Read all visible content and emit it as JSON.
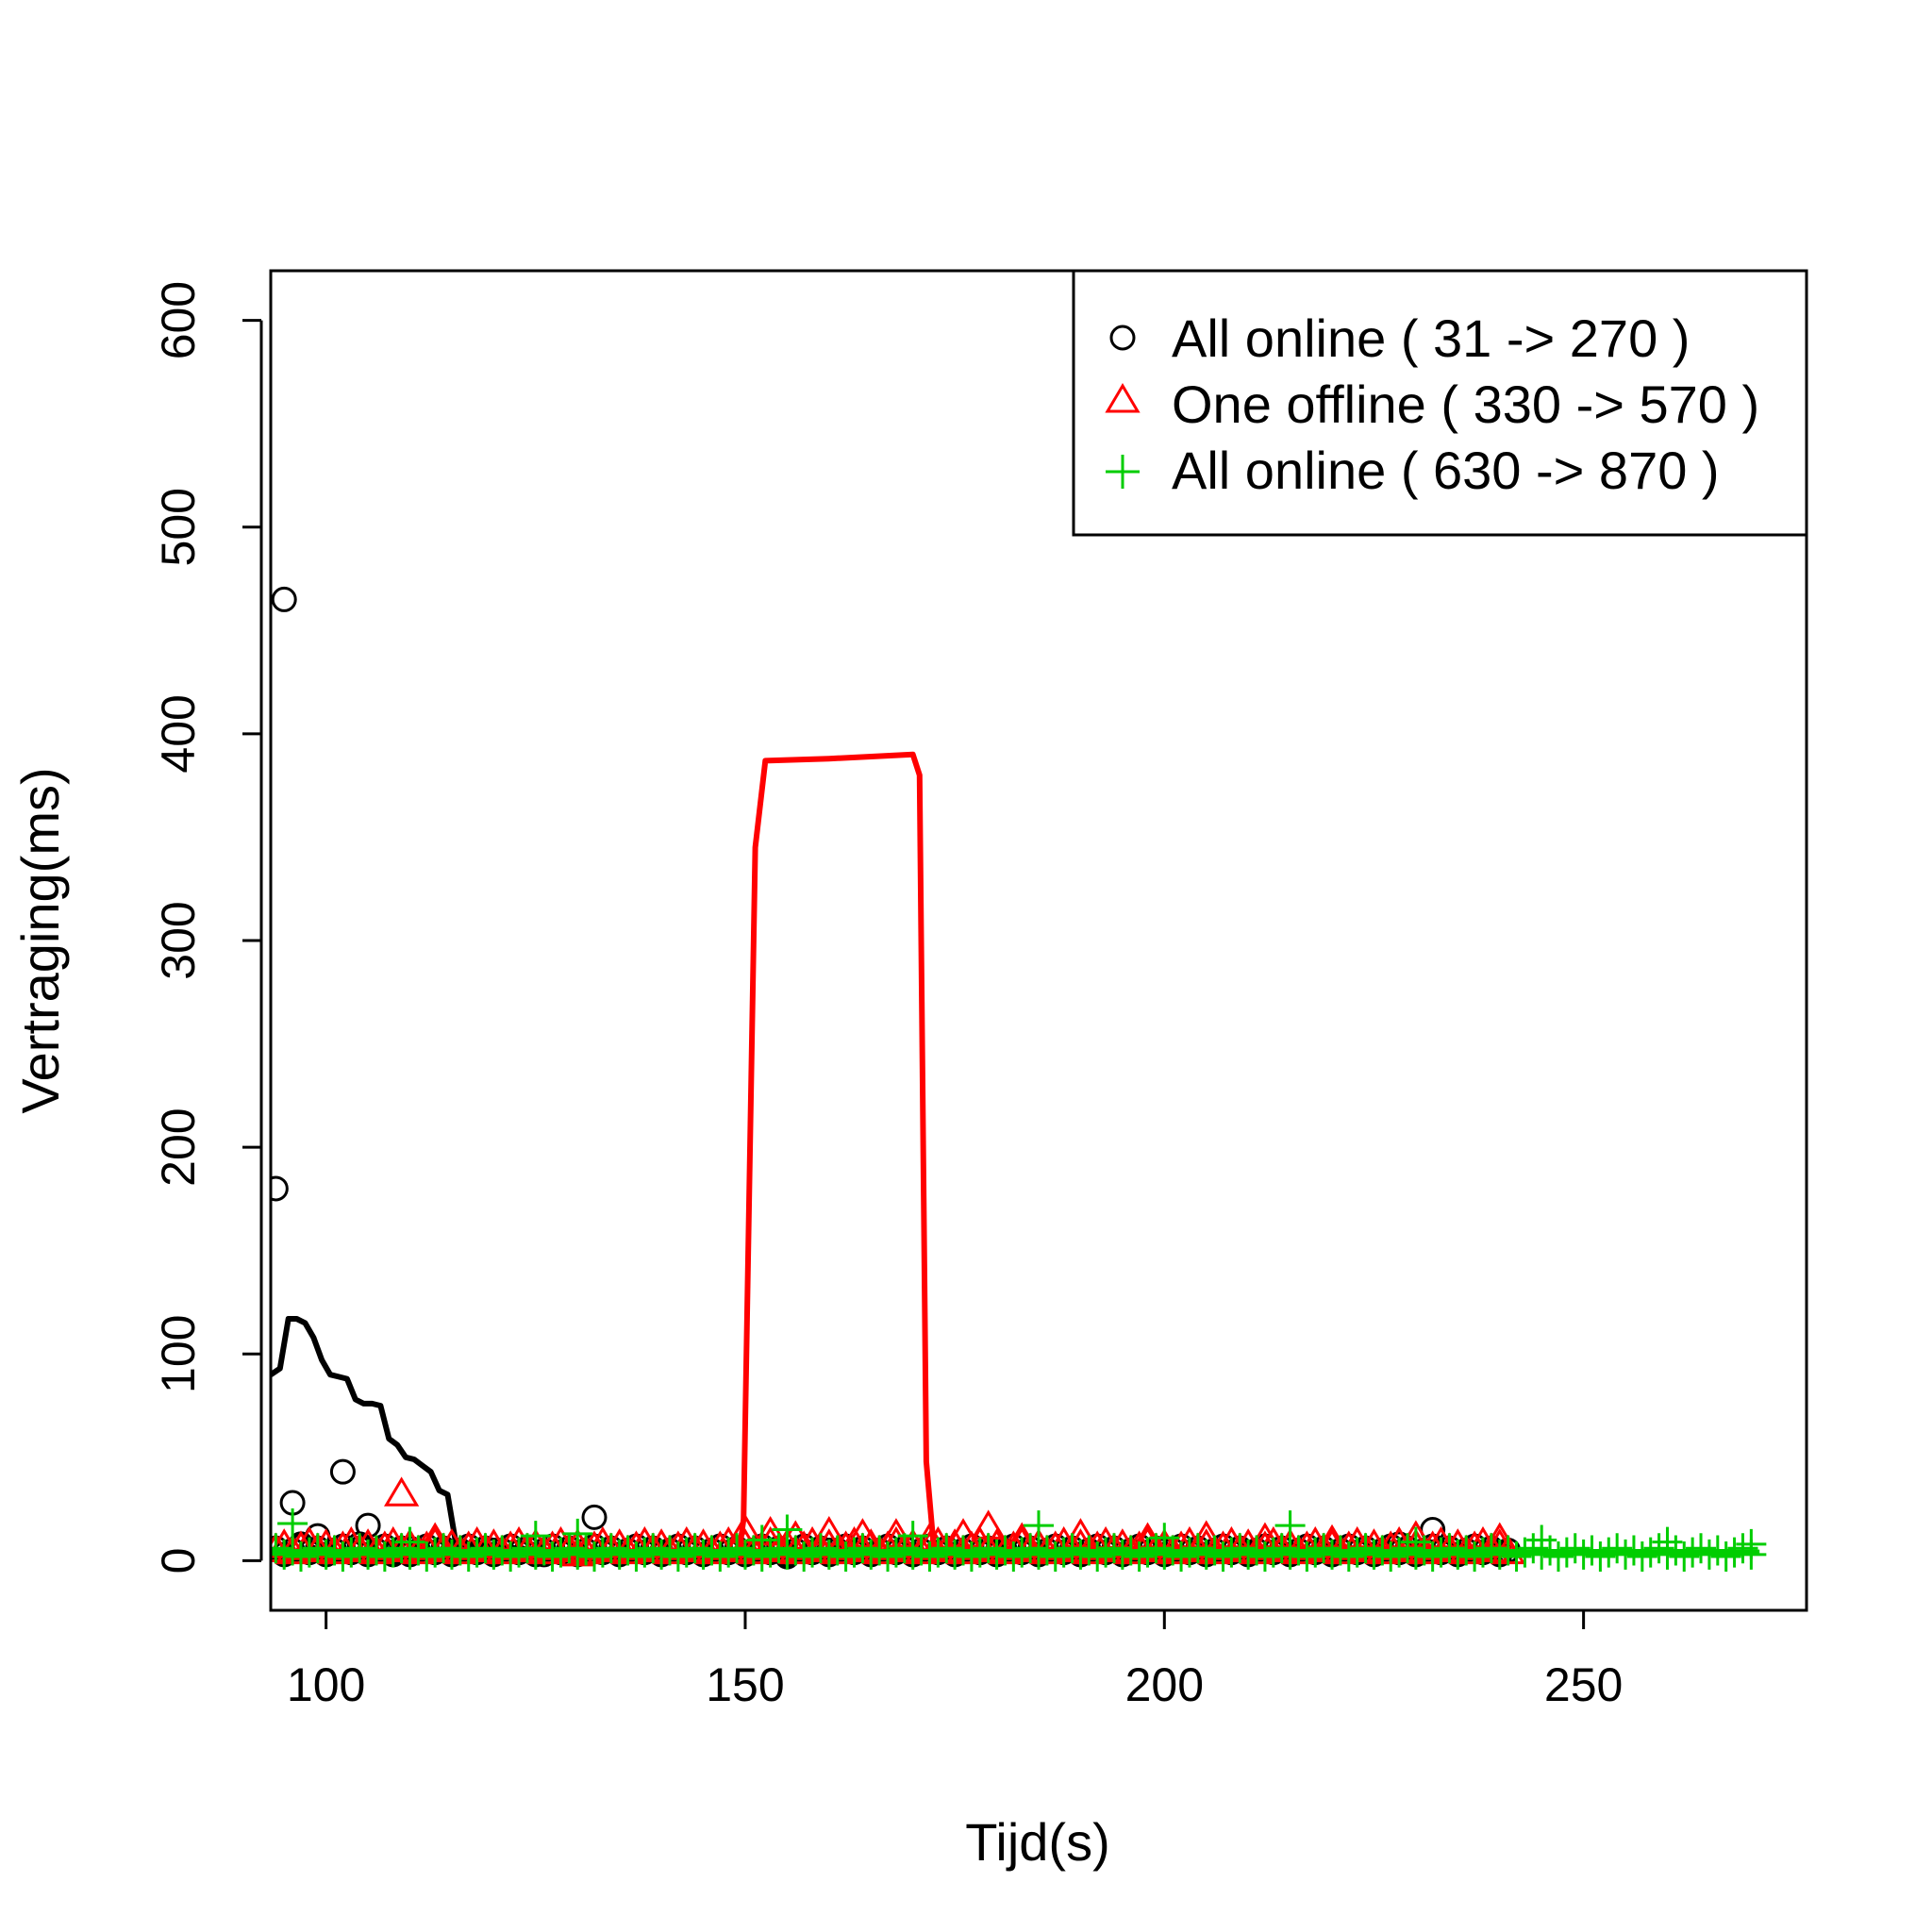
{
  "chart_data": {
    "type": "scatter",
    "title": "",
    "xlabel": "Tijd(s)",
    "ylabel": "Vertraging(ms)",
    "xlim": [
      93.4,
      276.6
    ],
    "ylim": [
      -24,
      624
    ],
    "x_ticks": [
      "100",
      "150",
      "200",
      "250"
    ],
    "y_ticks": [
      "0",
      "100",
      "200",
      "300",
      "400",
      "500",
      "600"
    ],
    "grid": false,
    "legend": {
      "position": "top-right",
      "entries": [
        {
          "label": "All online ( 31 -> 270 )",
          "marker": "circle",
          "color": "#000000"
        },
        {
          "label": "One offline ( 330 -> 570 )",
          "marker": "triangle",
          "color": "#ff0000"
        },
        {
          "label": "All online ( 630 -> 870 )",
          "marker": "plus",
          "color": "#00cd00"
        }
      ]
    },
    "series": [
      {
        "name": "All online ( 31 -> 270 )",
        "color": "#000000",
        "marker": "circle",
        "points": [
          [
            94,
            180
          ],
          [
            95,
            465
          ],
          [
            96,
            28
          ],
          [
            97,
            8
          ],
          [
            99,
            12
          ],
          [
            101,
            5
          ],
          [
            102,
            43
          ],
          [
            104,
            8
          ],
          [
            105,
            17
          ],
          [
            108,
            3
          ],
          [
            110,
            6
          ],
          [
            115,
            4
          ],
          [
            120,
            5
          ],
          [
            126,
            3
          ],
          [
            132,
            21
          ],
          [
            140,
            4
          ],
          [
            150,
            3
          ],
          [
            155,
            2
          ],
          [
            160,
            5
          ],
          [
            170,
            3
          ],
          [
            180,
            4
          ],
          [
            190,
            3
          ],
          [
            200,
            5
          ],
          [
            210,
            4
          ],
          [
            220,
            3
          ],
          [
            228,
            8
          ],
          [
            232,
            15
          ],
          [
            240,
            4
          ]
        ],
        "baseline": {
          "x_from": 94,
          "x_to": 241,
          "y": 5,
          "spacing": 1
        },
        "line": {
          "x": [
            93.4,
            94.5,
            95.5,
            96.5,
            97.5,
            98.5,
            99.5,
            100.5,
            101.5,
            102.5,
            103.5,
            104.5,
            105.5,
            106.5,
            107.5,
            108.5,
            109.5,
            110.5,
            111.5,
            112.5,
            113.5,
            114.5,
            115.5,
            130,
            150,
            170,
            190,
            210,
            230,
            241
          ],
          "y": [
            90,
            93,
            117,
            117,
            115,
            108,
            97,
            90,
            89,
            88,
            78,
            76,
            76,
            75,
            59,
            56,
            50,
            49,
            46,
            43,
            34,
            32,
            8,
            4,
            3,
            3,
            3,
            3,
            3,
            3
          ]
        }
      },
      {
        "name": "One offline ( 330 -> 570 )",
        "color": "#ff0000",
        "marker": "triangle",
        "points": [
          [
            109,
            32
          ],
          [
            113,
            10
          ],
          [
            130,
            3
          ],
          [
            150,
            14
          ],
          [
            153,
            13
          ],
          [
            156,
            11
          ],
          [
            160,
            13
          ],
          [
            164,
            12
          ],
          [
            168,
            12
          ],
          [
            172,
            10
          ],
          [
            176,
            12
          ],
          [
            179,
            16
          ],
          [
            183,
            10
          ],
          [
            190,
            12
          ],
          [
            198,
            10
          ],
          [
            205,
            11
          ],
          [
            212,
            10
          ],
          [
            220,
            9
          ],
          [
            230,
            11
          ],
          [
            240,
            10
          ]
        ],
        "baseline": {
          "x_from": 94,
          "x_to": 241,
          "y": 6,
          "spacing": 1
        },
        "line": {
          "x": [
            93.4,
            110,
            128,
            149.3,
            149.8,
            151.2,
            152.4,
            160,
            170,
            170.8,
            171.6,
            172.5,
            180,
            200,
            220,
            241
          ],
          "y": [
            3,
            3,
            2,
            5,
            20,
            345,
            387,
            388,
            390,
            380,
            48,
            6,
            5,
            6,
            6,
            6
          ]
        }
      },
      {
        "name": "All online ( 630 -> 870 )",
        "color": "#00cd00",
        "marker": "plus",
        "points": [
          [
            96,
            18
          ],
          [
            110,
            9
          ],
          [
            125,
            12
          ],
          [
            130,
            13
          ],
          [
            152,
            10
          ],
          [
            155,
            15
          ],
          [
            170,
            12
          ],
          [
            185,
            17
          ],
          [
            200,
            11
          ],
          [
            215,
            17
          ],
          [
            230,
            9
          ],
          [
            245,
            10
          ],
          [
            260,
            9
          ],
          [
            270,
            8
          ]
        ],
        "baseline": {
          "x_from": 94,
          "x_to": 270,
          "y": 4,
          "spacing": 1
        },
        "line": {
          "x": [
            93.4,
            120,
            150,
            180,
            210,
            240,
            271
          ],
          "y": [
            4,
            4,
            4,
            4,
            4,
            4,
            4
          ]
        }
      }
    ]
  }
}
